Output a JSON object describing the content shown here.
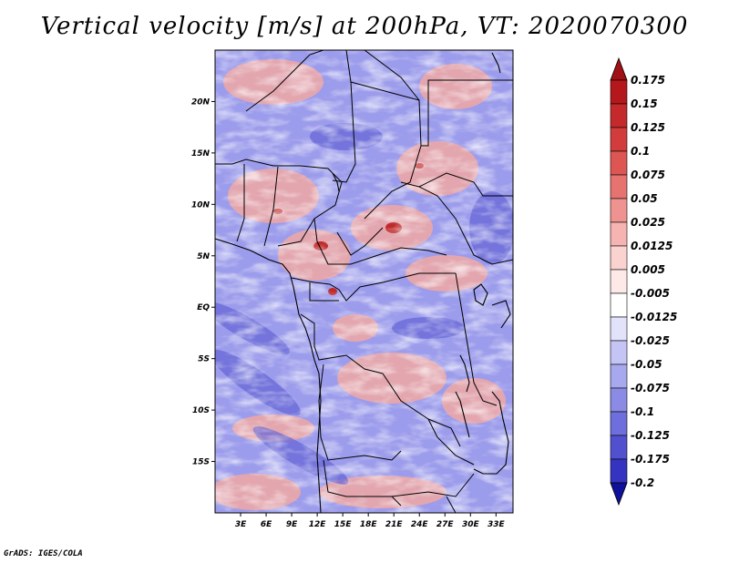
{
  "title": "Vertical velocity [m/s] at 200hPa, VT: 2020070300",
  "credit": "GrADS: IGES/COLA",
  "map": {
    "lon_range": [
      0,
      35
    ],
    "lat_range": [
      -20,
      25
    ],
    "lat_ticks": [
      {
        "lat": 20,
        "label": "20N"
      },
      {
        "lat": 15,
        "label": "15N"
      },
      {
        "lat": 10,
        "label": "10N"
      },
      {
        "lat": 5,
        "label": "5N"
      },
      {
        "lat": 0,
        "label": "EQ"
      },
      {
        "lat": -5,
        "label": "5S"
      },
      {
        "lat": -10,
        "label": "10S"
      },
      {
        "lat": -15,
        "label": "15S"
      }
    ],
    "lon_ticks": [
      {
        "lon": 3,
        "label": "3E"
      },
      {
        "lon": 6,
        "label": "6E"
      },
      {
        "lon": 9,
        "label": "9E"
      },
      {
        "lon": 12,
        "label": "12E"
      },
      {
        "lon": 15,
        "label": "15E"
      },
      {
        "lon": 18,
        "label": "18E"
      },
      {
        "lon": 21,
        "label": "21E"
      },
      {
        "lon": 24,
        "label": "24E"
      },
      {
        "lon": 27,
        "label": "27E"
      },
      {
        "lon": 30,
        "label": "30E"
      },
      {
        "lon": 33,
        "label": "33E"
      }
    ]
  },
  "colorbar": {
    "levels": [
      {
        "label": "0.175",
        "color": "#b4181c"
      },
      {
        "label": "0.15",
        "color": "#c42a2c"
      },
      {
        "label": "0.125",
        "color": "#d23c3c"
      },
      {
        "label": "0.1",
        "color": "#dd5654"
      },
      {
        "label": "0.075",
        "color": "#e6736f"
      },
      {
        "label": "0.05",
        "color": "#ee9390"
      },
      {
        "label": "0.025",
        "color": "#f5b4b1"
      },
      {
        "label": "0.0125",
        "color": "#fad2d0"
      },
      {
        "label": "0.005",
        "color": "#fde9e8"
      },
      {
        "label": "-0.005",
        "color": "#ffffff"
      },
      {
        "label": "-0.0125",
        "color": "#e2e2fb"
      },
      {
        "label": "-0.025",
        "color": "#c5c5f5"
      },
      {
        "label": "-0.05",
        "color": "#a8a8ee"
      },
      {
        "label": "-0.075",
        "color": "#8b8be6"
      },
      {
        "label": "-0.1",
        "color": "#6e6edc"
      },
      {
        "label": "-0.125",
        "color": "#5151cf"
      },
      {
        "label": "-0.175",
        "color": "#3434c0"
      },
      {
        "label": "-0.2",
        "color": "#1c1caa"
      }
    ],
    "top_extend_color": "#a01014",
    "bottom_extend_color": "#10109a"
  }
}
